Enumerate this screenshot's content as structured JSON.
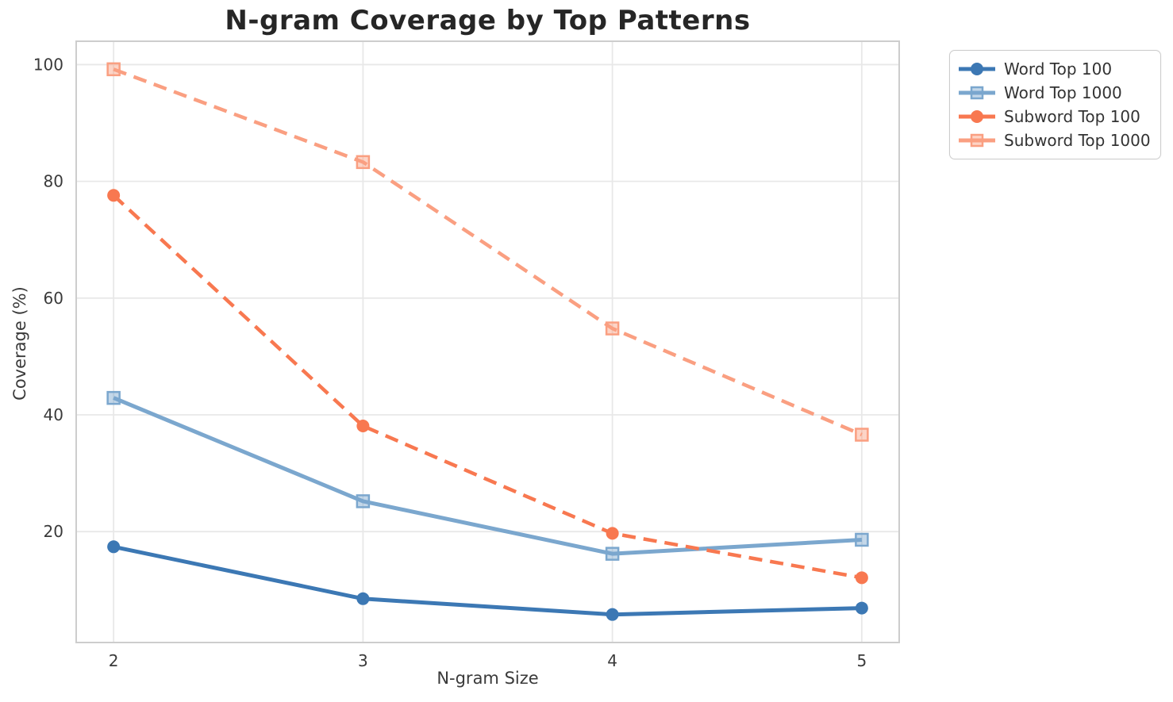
{
  "chart_data": {
    "type": "line",
    "title": "N-gram Coverage by Top Patterns",
    "xlabel": "N-gram Size",
    "ylabel": "Coverage (%)",
    "x": [
      2,
      3,
      4,
      5
    ],
    "xtick_labels": [
      "2",
      "3",
      "4",
      "5"
    ],
    "yticks": [
      20,
      40,
      60,
      80,
      100
    ],
    "ytick_labels": [
      "20",
      "40",
      "60",
      "80",
      "100"
    ],
    "xlim": [
      1.85,
      5.15
    ],
    "ylim": [
      1.0,
      104.0
    ],
    "grid": true,
    "legend_position": "outside-top-right",
    "series": [
      {
        "name": "Word Top 100",
        "values": [
          17.4,
          8.5,
          5.8,
          6.9
        ],
        "color": "#3c78b4",
        "marker": "circle",
        "line_style": "solid"
      },
      {
        "name": "Word Top 1000",
        "values": [
          42.9,
          25.2,
          16.2,
          18.6
        ],
        "color": "#7ba7ce",
        "marker": "square",
        "line_style": "solid"
      },
      {
        "name": "Subword Top 100",
        "values": [
          77.6,
          38.1,
          19.7,
          12.1
        ],
        "color": "#f87850",
        "marker": "circle",
        "line_style": "dashed"
      },
      {
        "name": "Subword Top 1000",
        "values": [
          99.2,
          83.3,
          54.8,
          36.6
        ],
        "color": "#fa9f81",
        "marker": "square",
        "line_style": "dashed"
      }
    ]
  },
  "colors": {
    "grid": "#e8e8e8",
    "spine": "#cdcdcd",
    "tick_text": "#3a3a3a",
    "title_text": "#262626",
    "legend_border": "#cccccc",
    "background": "#ffffff"
  }
}
